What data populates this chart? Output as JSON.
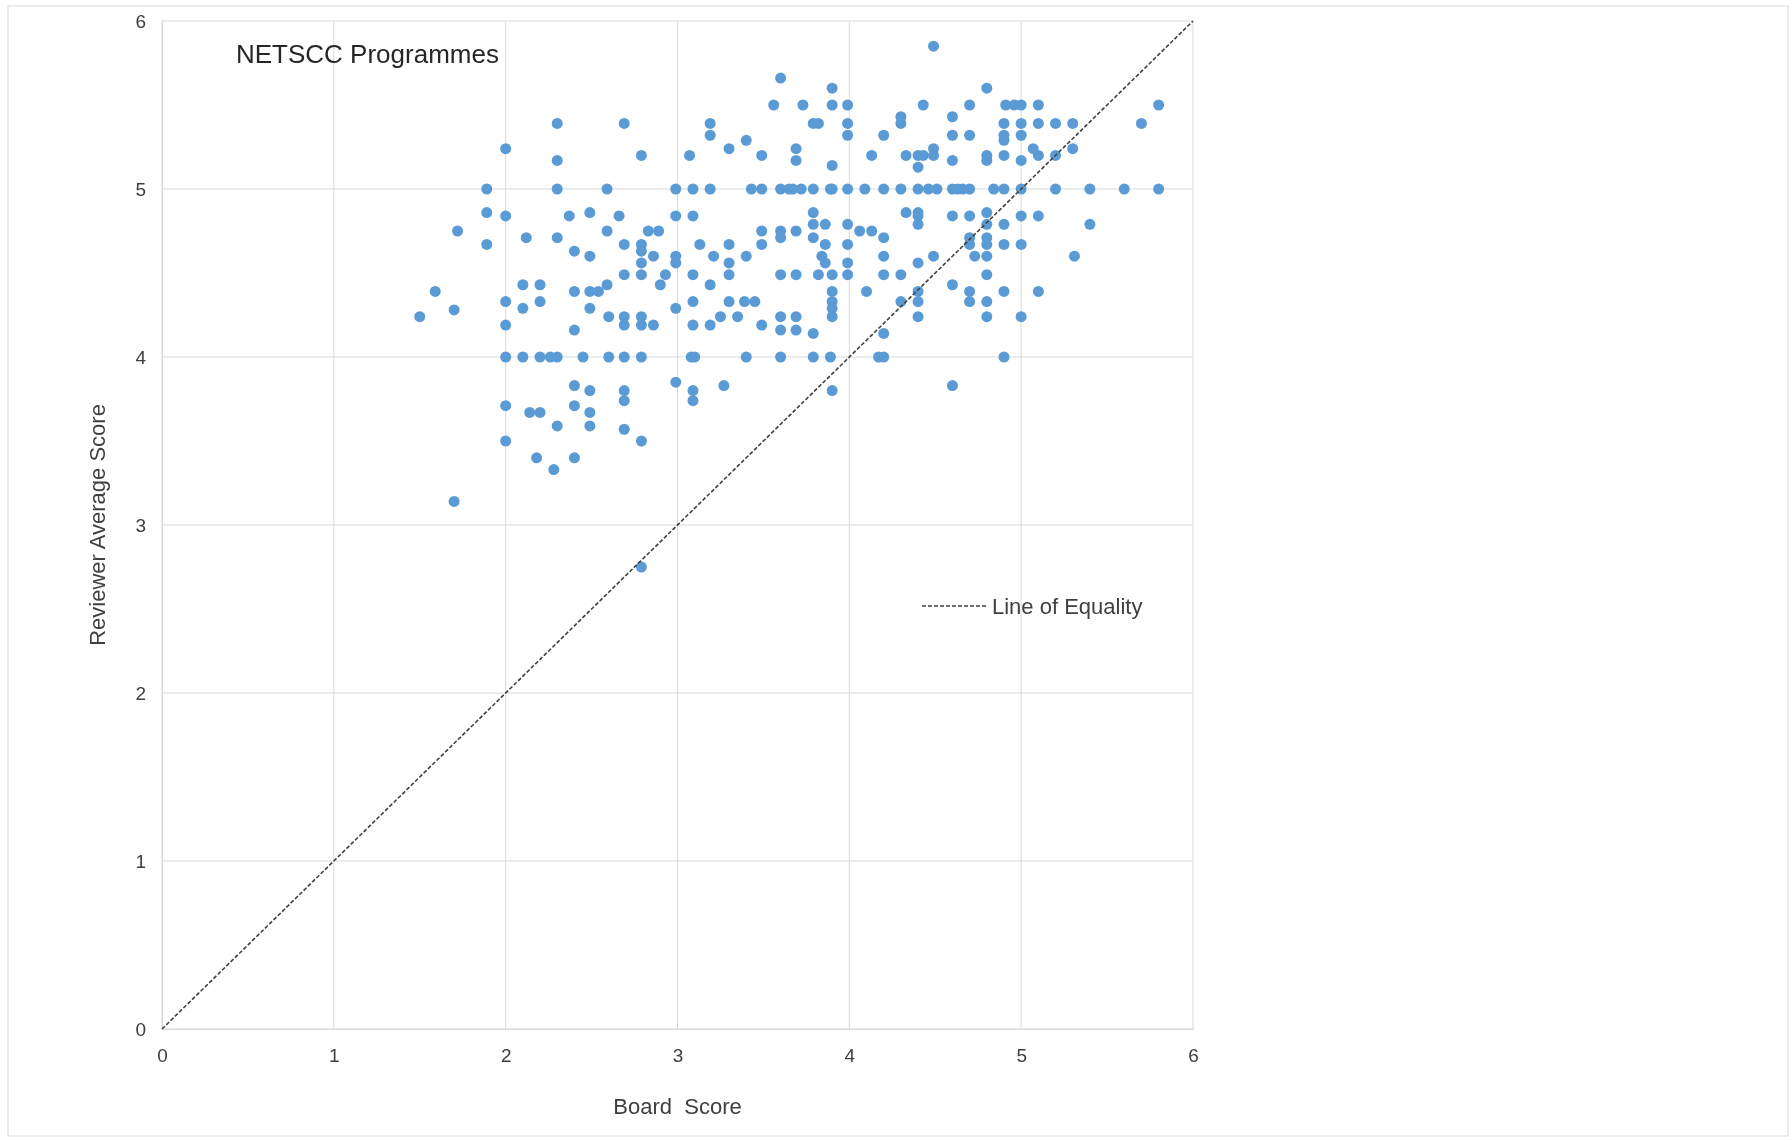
{
  "chart_data": {
    "type": "scatter",
    "title": "NETSCC Programmes",
    "xlabel": "Board  Score",
    "ylabel": "Reviewer Average Score",
    "xlim": [
      0,
      6
    ],
    "ylim": [
      0,
      6
    ],
    "xticks": [
      0,
      1,
      2,
      3,
      4,
      5,
      6
    ],
    "yticks": [
      0,
      1,
      2,
      3,
      4,
      5,
      6
    ],
    "grid": true,
    "marker": "circle",
    "legend": "right",
    "series": [
      {
        "color": "#5b9bd5",
        "x": [
          1.5,
          1.59,
          1.7,
          1.7,
          1.72,
          1.89,
          1.89,
          1.89,
          2.0,
          2.0,
          2.0,
          2.0,
          2.0,
          2.0,
          2.0,
          2.1,
          2.1,
          2.1,
          2.12,
          2.14,
          2.18,
          2.2,
          2.2,
          2.2,
          2.2,
          2.26,
          2.3,
          2.3,
          2.3,
          2.3,
          2.3,
          2.3,
          2.28,
          2.37,
          2.4,
          2.4,
          2.4,
          2.4,
          2.4,
          2.4,
          2.45,
          2.49,
          2.49,
          2.49,
          2.49,
          2.49,
          2.49,
          2.49,
          2.54,
          2.59,
          2.59,
          2.59,
          2.6,
          2.6,
          2.66,
          2.69,
          2.69,
          2.69,
          2.69,
          2.69,
          2.69,
          2.69,
          2.69,
          2.69,
          2.79,
          2.79,
          2.79,
          2.79,
          2.79,
          2.79,
          2.79,
          2.79,
          2.79,
          2.79,
          2.83,
          2.86,
          2.86,
          2.89,
          2.9,
          2.93,
          2.99,
          2.99,
          2.99,
          2.99,
          2.99,
          2.99,
          3.07,
          3.09,
          3.09,
          3.09,
          3.09,
          3.09,
          3.08,
          3.1,
          3.09,
          3.09,
          3.13,
          3.19,
          3.19,
          3.19,
          3.19,
          3.19,
          3.21,
          3.25,
          3.27,
          3.3,
          3.3,
          3.3,
          3.3,
          3.3,
          3.35,
          3.39,
          3.4,
          3.4,
          3.4,
          3.45,
          3.43,
          3.49,
          3.49,
          3.49,
          3.49,
          3.49,
          3.56,
          3.6,
          3.6,
          3.6,
          3.6,
          3.6,
          3.6,
          3.6,
          3.6,
          3.65,
          3.67,
          3.69,
          3.69,
          3.69,
          3.69,
          3.69,
          3.69,
          3.72,
          3.73,
          3.79,
          3.79,
          3.79,
          3.79,
          3.79,
          3.79,
          3.79,
          3.82,
          3.82,
          3.84,
          3.86,
          3.86,
          3.86,
          3.89,
          3.89,
          3.9,
          3.9,
          3.9,
          3.9,
          3.9,
          3.9,
          3.9,
          3.9,
          3.9,
          3.9,
          3.99,
          3.99,
          3.99,
          3.99,
          3.99,
          3.99,
          3.99,
          3.99,
          4.06,
          4.09,
          4.1,
          4.13,
          4.13,
          4.17,
          4.2,
          4.2,
          4.2,
          4.2,
          4.2,
          4.2,
          4.2,
          4.3,
          4.3,
          4.3,
          4.3,
          4.3,
          4.33,
          4.33,
          4.4,
          4.4,
          4.4,
          4.4,
          4.4,
          4.4,
          4.4,
          4.4,
          4.4,
          4.4,
          4.43,
          4.43,
          4.46,
          4.49,
          4.49,
          4.49,
          4.49,
          4.51,
          4.6,
          4.6,
          4.6,
          4.6,
          4.6,
          4.6,
          4.6,
          4.63,
          4.66,
          4.7,
          4.7,
          4.7,
          4.7,
          4.7,
          4.7,
          4.7,
          4.7,
          4.73,
          4.8,
          4.8,
          4.8,
          4.8,
          4.8,
          4.8,
          4.8,
          4.8,
          4.8,
          4.8,
          4.8,
          4.84,
          4.9,
          4.9,
          4.9,
          4.9,
          4.9,
          4.9,
          4.9,
          4.9,
          4.9,
          4.91,
          4.96,
          5.0,
          5.0,
          5.0,
          5.0,
          5.0,
          5.0,
          5.0,
          5.0,
          5.07,
          5.1,
          5.1,
          5.1,
          5.1,
          5.1,
          5.2,
          5.2,
          5.2,
          5.3,
          5.3,
          5.31,
          5.4,
          5.4,
          5.6,
          5.7,
          5.8,
          5.8
        ],
        "values": [
          4.24,
          4.39,
          3.14,
          4.28,
          4.75,
          5.0,
          4.86,
          4.67,
          5.24,
          4.84,
          4.33,
          4.19,
          4.0,
          3.71,
          3.5,
          4.43,
          4.29,
          4.0,
          4.71,
          3.67,
          3.4,
          4.43,
          4.33,
          4.0,
          3.67,
          4.0,
          5.39,
          5.17,
          5.0,
          4.71,
          4.0,
          3.59,
          3.33,
          4.84,
          4.63,
          4.39,
          4.16,
          3.83,
          3.71,
          3.4,
          4.0,
          4.86,
          4.6,
          4.39,
          4.29,
          3.8,
          3.67,
          3.59,
          4.39,
          5.0,
          4.75,
          4.43,
          4.24,
          4.0,
          4.84,
          5.39,
          4.67,
          4.49,
          4.24,
          4.19,
          4.0,
          3.8,
          3.74,
          3.57,
          5.2,
          4.67,
          4.63,
          4.56,
          4.49,
          4.24,
          4.19,
          4.0,
          3.5,
          2.75,
          4.75,
          4.6,
          4.19,
          4.75,
          4.43,
          4.49,
          5.0,
          4.84,
          4.6,
          4.56,
          4.29,
          3.85,
          5.2,
          5.0,
          4.84,
          4.49,
          4.33,
          4.19,
          4.0,
          4.0,
          3.8,
          3.74,
          4.67,
          5.0,
          5.39,
          5.32,
          4.43,
          4.19,
          4.6,
          4.24,
          3.83,
          5.24,
          4.67,
          4.56,
          4.49,
          4.33,
          4.24,
          4.33,
          5.29,
          4.0,
          4.6,
          4.33,
          5.0,
          5.0,
          5.2,
          4.75,
          4.67,
          4.19,
          5.5,
          5.66,
          5.0,
          4.75,
          4.71,
          4.49,
          4.24,
          4.16,
          4.0,
          5.0,
          5.0,
          5.24,
          5.17,
          4.49,
          4.75,
          4.24,
          4.16,
          5.0,
          5.5,
          5.39,
          5.0,
          4.86,
          4.79,
          4.71,
          4.14,
          4.0,
          5.39,
          4.49,
          4.6,
          4.79,
          4.67,
          4.56,
          5.0,
          4.0,
          5.6,
          5.5,
          5.14,
          5.0,
          4.49,
          4.39,
          4.33,
          4.29,
          4.24,
          3.8,
          5.5,
          5.39,
          5.32,
          5.0,
          4.79,
          4.67,
          4.56,
          4.49,
          4.75,
          5.0,
          4.39,
          4.75,
          5.2,
          4.0,
          5.32,
          5.0,
          4.71,
          4.6,
          4.49,
          4.14,
          4.0,
          5.43,
          5.39,
          5.0,
          4.49,
          4.33,
          5.2,
          4.86,
          5.2,
          5.13,
          5.0,
          4.86,
          4.84,
          4.79,
          4.56,
          4.39,
          4.33,
          4.24,
          5.5,
          5.2,
          5.0,
          5.85,
          5.24,
          5.2,
          4.6,
          5.0,
          5.43,
          5.32,
          5.17,
          5.0,
          4.84,
          4.43,
          3.83,
          5.0,
          5.0,
          5.5,
          5.32,
          5.0,
          4.84,
          4.71,
          4.67,
          4.39,
          4.33,
          4.6,
          5.6,
          5.2,
          5.17,
          4.86,
          4.79,
          4.71,
          4.67,
          4.6,
          4.49,
          4.33,
          4.24,
          5.0,
          5.39,
          5.32,
          5.29,
          5.2,
          5.0,
          4.79,
          4.67,
          4.39,
          4.0,
          5.5,
          5.5,
          5.5,
          5.39,
          5.32,
          5.17,
          5.0,
          4.84,
          4.67,
          4.24,
          5.24,
          5.5,
          5.39,
          5.2,
          4.84,
          4.39,
          5.39,
          5.2,
          5.0,
          5.39,
          5.24,
          4.6,
          5.0,
          4.79,
          5.0,
          5.39,
          5.5,
          5.0
        ]
      },
      {
        "type": "line",
        "name": "Line of Equality",
        "color": "#404040",
        "line_style": "dashed",
        "marker": "none",
        "x": [
          0,
          6
        ],
        "values": [
          0,
          6
        ]
      }
    ]
  }
}
